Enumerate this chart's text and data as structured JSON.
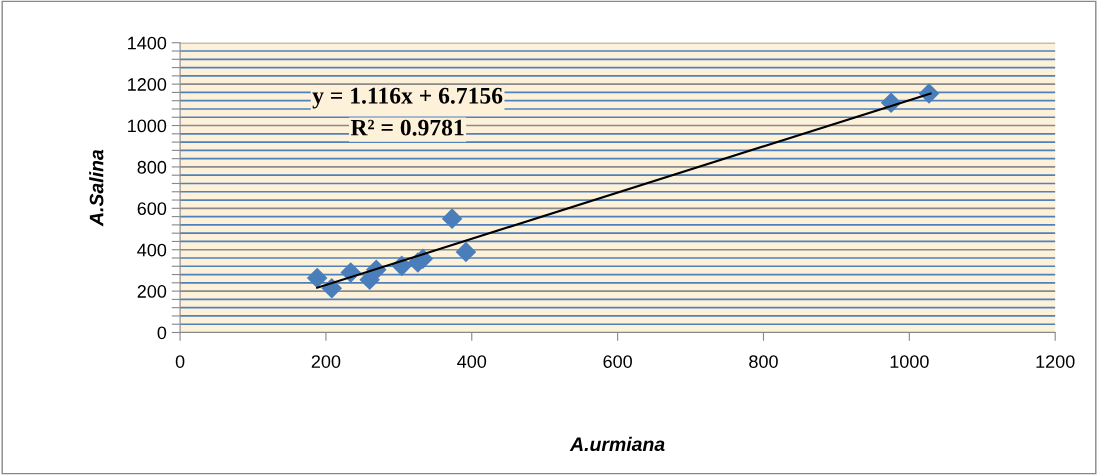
{
  "chart_data": {
    "type": "scatter",
    "xlabel": "A.urmiana",
    "ylabel": "A.Salina",
    "xlim": [
      0,
      1200
    ],
    "xticks": [
      0,
      200,
      400,
      600,
      800,
      1000,
      1200
    ],
    "ylim": [
      0,
      1400
    ],
    "yticks": [
      0,
      {
        "value": 40,
        "label": null
      },
      {
        "value": 80,
        "label": null
      },
      {
        "value": 120,
        "label": null
      },
      {
        "value": 160,
        "label": null
      },
      200,
      {
        "value": 240,
        "label": null
      },
      {
        "value": 280,
        "label": null
      },
      {
        "value": 320,
        "label": null
      },
      {
        "value": 360,
        "label": null
      },
      400,
      {
        "value": 440,
        "label": null
      },
      {
        "value": 480,
        "label": null
      },
      {
        "value": 520,
        "label": null
      },
      {
        "value": 560,
        "label": null
      },
      600,
      {
        "value": 640,
        "label": null
      },
      {
        "value": 680,
        "label": null
      },
      {
        "value": 720,
        "label": null
      },
      {
        "value": 760,
        "label": null
      },
      800,
      {
        "value": 840,
        "label": null
      },
      {
        "value": 880,
        "label": null
      },
      {
        "value": 920,
        "label": null
      },
      {
        "value": 960,
        "label": null
      },
      1000,
      {
        "value": 1040,
        "label": null
      },
      {
        "value": 1080,
        "label": null
      },
      {
        "value": 1120,
        "label": null
      },
      {
        "value": 1160,
        "label": null
      },
      1200,
      {
        "value": 1240,
        "label": null
      },
      {
        "value": 1280,
        "label": null
      },
      {
        "value": 1320,
        "label": null
      },
      {
        "value": 1360,
        "label": null
      },
      1400
    ],
    "grid": "y",
    "marker": "diamond",
    "legend": false,
    "annotations": [
      "y = 1.116x + 6.7156",
      "R² = 0.9781"
    ],
    "series": [
      {
        "type": "scatter",
        "color": "#4a7ebb",
        "x": [
          188,
          208,
          234,
          260,
          269,
          304,
          326,
          333,
          373,
          392,
          975,
          1027
        ],
        "values": [
          263,
          214,
          290,
          255,
          303,
          322,
          338,
          356,
          550,
          389,
          1110,
          1155
        ]
      },
      {
        "type": "line",
        "color": "#000000",
        "marker": "none",
        "x": [
          188,
          1029
        ],
        "values": [
          216,
          1155
        ]
      }
    ]
  }
}
